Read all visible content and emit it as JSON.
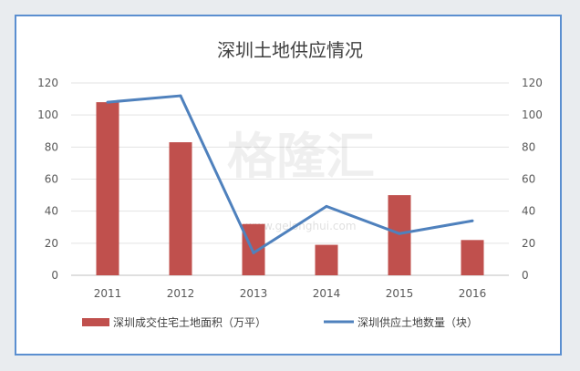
{
  "chart_data": {
    "type": "bar",
    "title": "深圳土地供应情况",
    "categories": [
      "2011",
      "2012",
      "2013",
      "2014",
      "2015",
      "2016"
    ],
    "ylim_left": [
      0,
      120
    ],
    "ylim_right": [
      0,
      120
    ],
    "yticks": [
      "0",
      "20",
      "40",
      "60",
      "80",
      "100",
      "120"
    ],
    "grid": true,
    "legend_position": "bottom",
    "series": [
      {
        "name": "深圳成交住宅土地面积（万平）",
        "type": "bar",
        "axis": "left",
        "color": "#c0504d",
        "values": [
          108,
          83,
          32,
          19,
          50,
          22
        ]
      },
      {
        "name": "深圳供应土地数量（块）",
        "type": "line",
        "axis": "right",
        "color": "#4f81bd",
        "values": [
          108,
          112,
          14,
          43,
          26,
          34
        ]
      }
    ]
  },
  "watermark": {
    "text": "格隆汇",
    "url": "www.gelonghui.com"
  }
}
